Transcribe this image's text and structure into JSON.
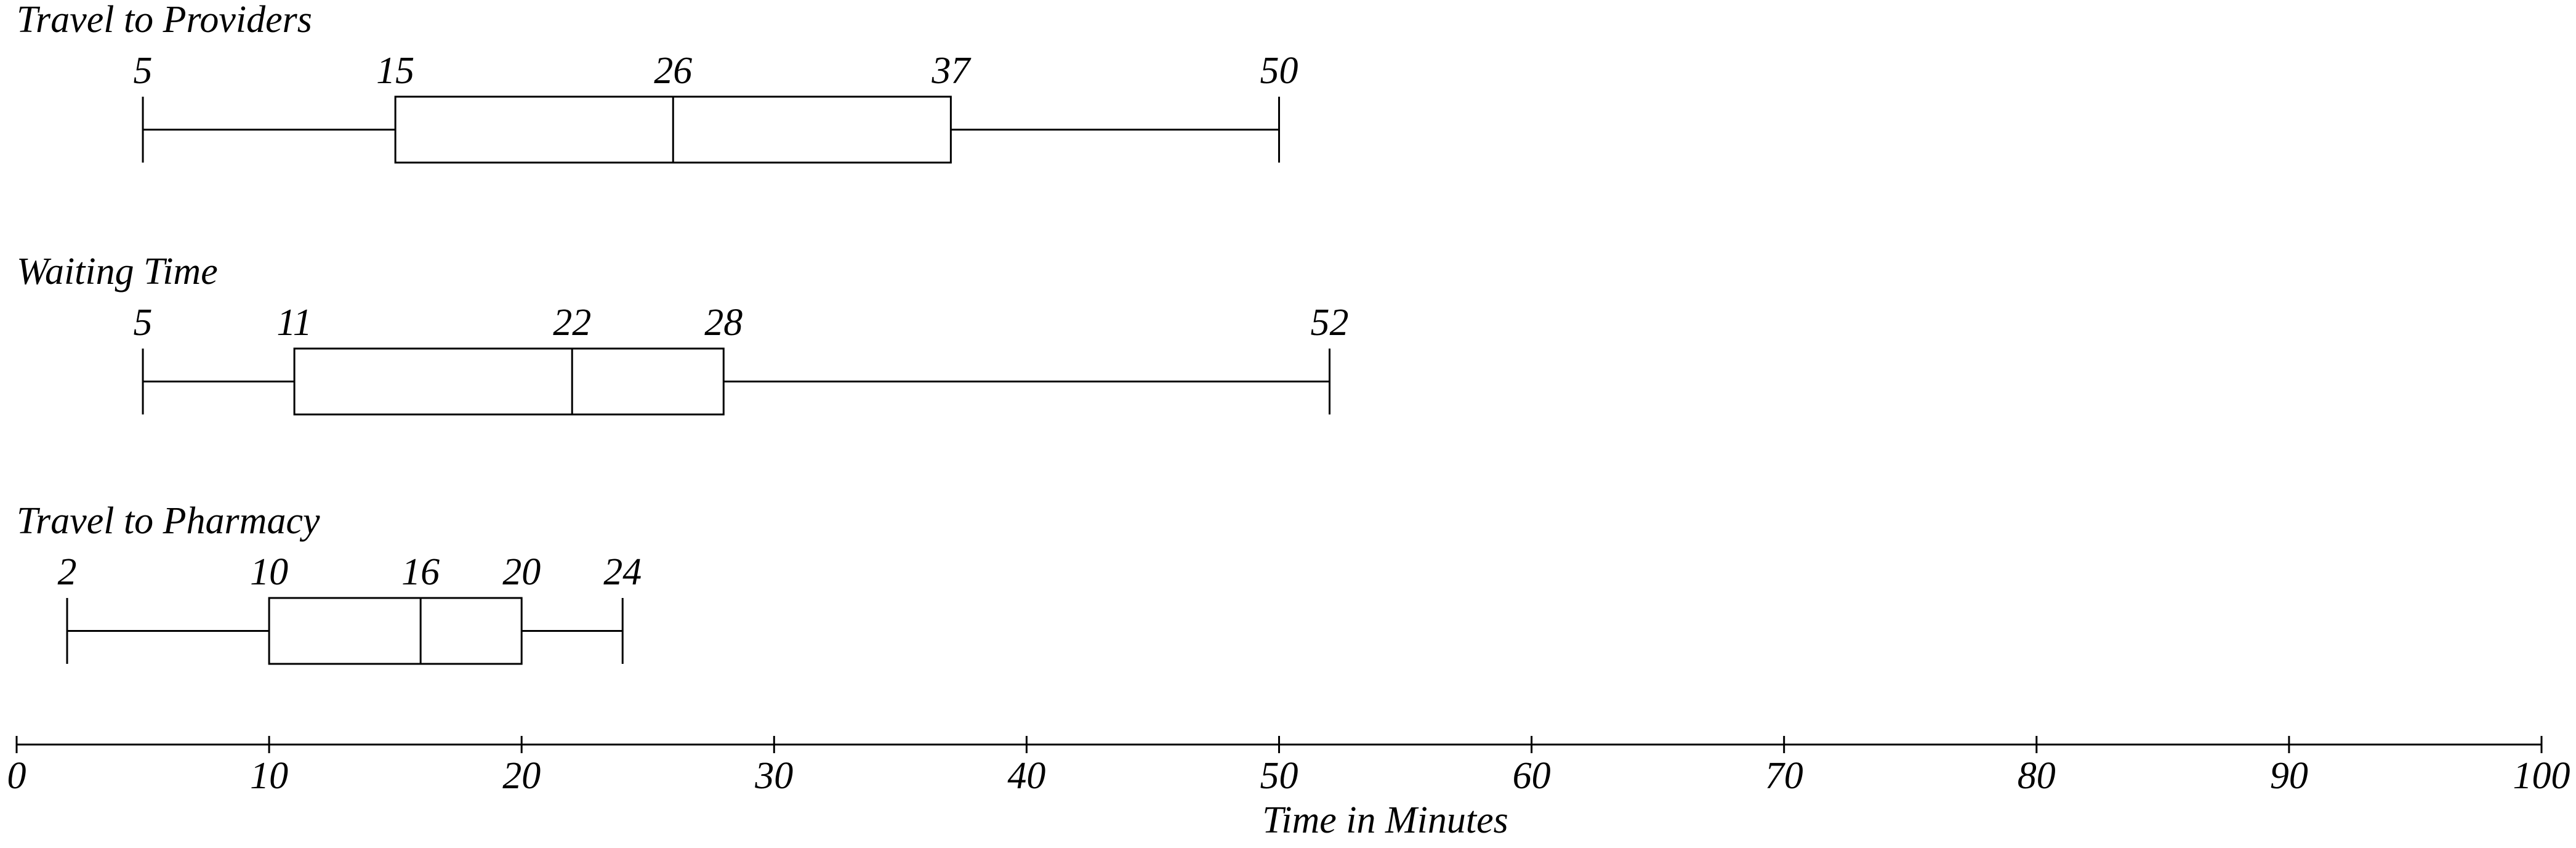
{
  "chart_data": {
    "type": "box",
    "boxes": [
      {
        "name": "Travel to Providers",
        "min": 5,
        "q1": 15,
        "median": 26,
        "q3": 37,
        "max": 50
      },
      {
        "name": "Waiting Time",
        "min": 5,
        "q1": 11,
        "median": 22,
        "q3": 28,
        "max": 52
      },
      {
        "name": "Travel to Pharmacy",
        "min": 2,
        "q1": 10,
        "median": 16,
        "q3": 20,
        "max": 24
      }
    ],
    "xlim": [
      0,
      100
    ],
    "xticks": [
      0,
      10,
      20,
      30,
      40,
      50,
      60,
      70,
      80,
      90,
      100
    ],
    "xlabel": "Time in Minutes",
    "color": "#000000"
  }
}
